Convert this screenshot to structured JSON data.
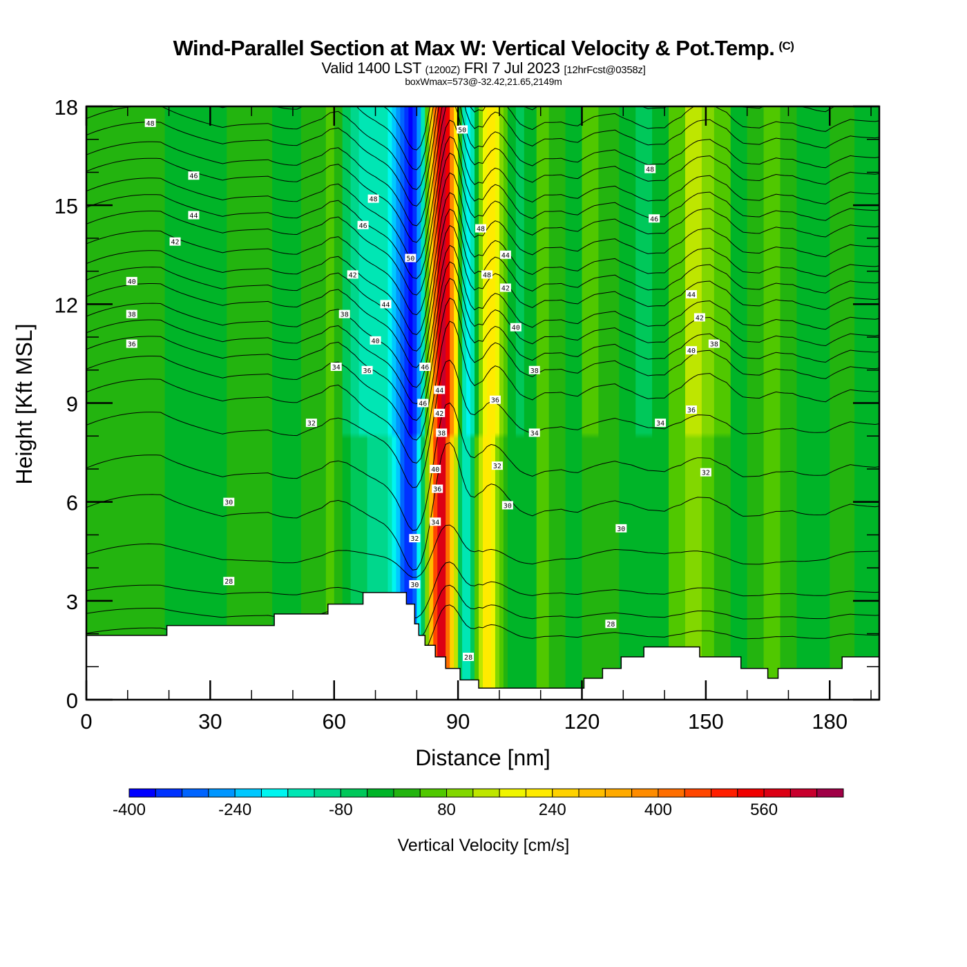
{
  "header": {
    "title": "Wind-Parallel Section at Max W: Vertical Velocity & Pot.Temp.",
    "copyright": "(C)",
    "valid_prefix": "Valid 1400 LST",
    "valid_utc": "(1200Z)",
    "valid_date": "FRI 7 Jul 2023",
    "forecast": "[12hrFcst@0358z]",
    "box_wmax": "boxWmax=573@-32.42,21.65,2149m"
  },
  "chart_data": {
    "type": "heatmap",
    "title": "Wind-Parallel Section at Max W: Vertical Velocity & Pot.Temp.",
    "xlabel": "Distance [nm]",
    "ylabel": "Height [Kft MSL]",
    "xlim": [
      0,
      192
    ],
    "ylim": [
      0,
      18
    ],
    "xticks": [
      0,
      30,
      60,
      90,
      120,
      150,
      180
    ],
    "xtick_labels": [
      "0",
      "30",
      "60",
      "90",
      "120",
      "150",
      "180"
    ],
    "yticks": [
      0,
      3,
      6,
      9,
      12,
      15,
      18
    ],
    "ytick_labels": [
      "0",
      "3",
      "6",
      "9",
      "12",
      "15",
      "18"
    ],
    "grid": false,
    "colorbar": {
      "title": "Vertical Velocity [cm/s]",
      "levels_start": -400,
      "level_step": 40,
      "tick_values": [
        -400,
        -240,
        -80,
        80,
        240,
        400,
        560
      ],
      "tick_labels": [
        "-400",
        "-240",
        "-80",
        "80",
        "240",
        "400",
        "560"
      ],
      "colors": [
        "#0000ff",
        "#0032ff",
        "#0064ff",
        "#0096ff",
        "#00c8ff",
        "#00f5f0",
        "#00e6b4",
        "#00d78c",
        "#00c85a",
        "#00b428",
        "#23b40f",
        "#50c800",
        "#82d700",
        "#bee600",
        "#f0f500",
        "#ffeb00",
        "#ffd200",
        "#ffbe00",
        "#ffaa00",
        "#ff8c00",
        "#ff6e00",
        "#ff4600",
        "#ff1e00",
        "#f00000",
        "#dc0014",
        "#c8002d",
        "#a00046"
      ]
    },
    "vertical_velocity_columns": {
      "description": "Vertical velocity (cm/s) by distance band, approximating the filled field above terrain",
      "x_edges": [
        0,
        19,
        34,
        45,
        52,
        58,
        60,
        62,
        64,
        66,
        68,
        71,
        73,
        74,
        75,
        76,
        77,
        78,
        79,
        80,
        81,
        82,
        83,
        84,
        85,
        86,
        87,
        88,
        89,
        90,
        91,
        92,
        93,
        94,
        95,
        96,
        97,
        98,
        99,
        100,
        101,
        102,
        104,
        106,
        109,
        112,
        116,
        120,
        124,
        129,
        133,
        137,
        141,
        145,
        149,
        152,
        156,
        160,
        164,
        168,
        172,
        176,
        180,
        186,
        192
      ],
      "upper_values": [
        20,
        -20,
        20,
        -20,
        20,
        60,
        20,
        -60,
        -100,
        -140,
        -140,
        -160,
        -180,
        -220,
        -260,
        -300,
        -340,
        -380,
        -340,
        -260,
        -140,
        60,
        260,
        420,
        540,
        620,
        540,
        380,
        200,
        0,
        -160,
        -200,
        -140,
        -40,
        100,
        180,
        220,
        220,
        180,
        100,
        40,
        -20,
        -60,
        -20,
        60,
        20,
        -20,
        40,
        20,
        -40,
        -60,
        -20,
        60,
        120,
        100,
        40,
        -20,
        20,
        60,
        20,
        -20,
        -40,
        20,
        -20
      ],
      "lower_values": [
        20,
        -20,
        20,
        -20,
        20,
        60,
        20,
        -20,
        -60,
        -80,
        -100,
        -120,
        -160,
        -200,
        -240,
        -300,
        -340,
        -360,
        -300,
        -200,
        -60,
        100,
        300,
        460,
        560,
        560,
        420,
        260,
        120,
        -60,
        -160,
        -140,
        -60,
        40,
        140,
        200,
        200,
        160,
        100,
        60,
        20,
        -20,
        -40,
        -20,
        40,
        20,
        -20,
        20,
        20,
        -20,
        -40,
        -20,
        40,
        80,
        60,
        20,
        -20,
        20,
        40,
        20,
        -20,
        -20,
        20,
        -20
      ]
    },
    "terrain": {
      "description": "Terrain profile (blank region) as steps: [start_nm, end_nm, height_kft]",
      "steps": [
        [
          0,
          19.5,
          1.95
        ],
        [
          19.5,
          45.5,
          2.25
        ],
        [
          45.5,
          58.5,
          2.6
        ],
        [
          58.5,
          67,
          2.9
        ],
        [
          67,
          77.5,
          3.25
        ],
        [
          77.5,
          79.5,
          2.9
        ],
        [
          79.5,
          80.5,
          2.3
        ],
        [
          80.5,
          82,
          1.95
        ],
        [
          82,
          84.5,
          1.65
        ],
        [
          84.5,
          87,
          1.3
        ],
        [
          87,
          90.5,
          0.95
        ],
        [
          90.5,
          95,
          0.6
        ],
        [
          95,
          120.5,
          0.35
        ],
        [
          120.5,
          125,
          0.65
        ],
        [
          125,
          129.5,
          0.95
        ],
        [
          129.5,
          135,
          1.3
        ],
        [
          135,
          148.5,
          1.6
        ],
        [
          148.5,
          158.5,
          1.3
        ],
        [
          158.5,
          165,
          0.95
        ],
        [
          165,
          167.5,
          0.65
        ],
        [
          167.5,
          183,
          0.95
        ],
        [
          183,
          192,
          1.3
        ]
      ]
    },
    "potential_temperature": {
      "description": "Isentropes (deg C potential temperature), contour interval 1; base height (kft) at left edge",
      "contour_interval": 1,
      "levels_min": 26,
      "levels_max": 50,
      "level_heights_left": {
        "26": 2.0,
        "27": 2.6,
        "28": 3.3,
        "29": 4.4,
        "30": 5.8,
        "31": 7.0,
        "32": 8.3,
        "33": 9.3,
        "34": 10.0,
        "35": 10.6,
        "36": 11.1,
        "37": 11.6,
        "38": 12.2,
        "39": 12.7,
        "40": 13.2,
        "41": 13.8,
        "42": 14.4,
        "43": 14.9,
        "44": 15.4,
        "45": 16.0,
        "46": 16.5,
        "47": 17.1,
        "48": 17.6,
        "49": 18.2,
        "50": 18.8
      }
    },
    "contour_labels": [
      {
        "text": "48",
        "x": 15.5,
        "y": 17.5
      },
      {
        "text": "46",
        "x": 26,
        "y": 15.9
      },
      {
        "text": "44",
        "x": 26,
        "y": 14.7
      },
      {
        "text": "42",
        "x": 21.5,
        "y": 13.9
      },
      {
        "text": "40",
        "x": 11,
        "y": 12.7
      },
      {
        "text": "38",
        "x": 11,
        "y": 11.7
      },
      {
        "text": "36",
        "x": 11,
        "y": 10.8
      },
      {
        "text": "34",
        "x": 60.5,
        "y": 10.1
      },
      {
        "text": "32",
        "x": 54.5,
        "y": 8.4
      },
      {
        "text": "30",
        "x": 34.5,
        "y": 6.0
      },
      {
        "text": "28",
        "x": 34.5,
        "y": 3.6
      },
      {
        "text": "48",
        "x": 69.5,
        "y": 15.2
      },
      {
        "text": "46",
        "x": 67,
        "y": 14.4
      },
      {
        "text": "42",
        "x": 64.5,
        "y": 12.9
      },
      {
        "text": "38",
        "x": 62.5,
        "y": 11.7
      },
      {
        "text": "44",
        "x": 72.5,
        "y": 12.0
      },
      {
        "text": "40",
        "x": 70,
        "y": 10.9
      },
      {
        "text": "36",
        "x": 68,
        "y": 10.0
      },
      {
        "text": "50",
        "x": 78.5,
        "y": 13.4
      },
      {
        "text": "46",
        "x": 82,
        "y": 10.1
      },
      {
        "text": "46",
        "x": 81.5,
        "y": 9.0
      },
      {
        "text": "44",
        "x": 85.5,
        "y": 9.4
      },
      {
        "text": "42",
        "x": 85.5,
        "y": 8.7
      },
      {
        "text": "38",
        "x": 86,
        "y": 8.1
      },
      {
        "text": "40",
        "x": 84.5,
        "y": 7.0
      },
      {
        "text": "36",
        "x": 85,
        "y": 6.4
      },
      {
        "text": "34",
        "x": 84.5,
        "y": 5.4
      },
      {
        "text": "32",
        "x": 79.5,
        "y": 4.9
      },
      {
        "text": "30",
        "x": 79.5,
        "y": 3.5
      },
      {
        "text": "28",
        "x": 92.5,
        "y": 1.3
      },
      {
        "text": "50",
        "x": 91,
        "y": 17.3
      },
      {
        "text": "48",
        "x": 95.5,
        "y": 14.3
      },
      {
        "text": "48",
        "x": 97,
        "y": 12.9
      },
      {
        "text": "44",
        "x": 101.5,
        "y": 13.5
      },
      {
        "text": "42",
        "x": 101.5,
        "y": 12.5
      },
      {
        "text": "40",
        "x": 104,
        "y": 11.3
      },
      {
        "text": "38",
        "x": 108.5,
        "y": 10.0
      },
      {
        "text": "36",
        "x": 99,
        "y": 9.1
      },
      {
        "text": "34",
        "x": 108.5,
        "y": 8.1
      },
      {
        "text": "32",
        "x": 99.5,
        "y": 7.1
      },
      {
        "text": "30",
        "x": 102,
        "y": 5.9
      },
      {
        "text": "30",
        "x": 129.5,
        "y": 5.2
      },
      {
        "text": "28",
        "x": 127,
        "y": 2.3
      },
      {
        "text": "48",
        "x": 136.5,
        "y": 16.1
      },
      {
        "text": "46",
        "x": 137.5,
        "y": 14.6
      },
      {
        "text": "44",
        "x": 146.5,
        "y": 12.3
      },
      {
        "text": "42",
        "x": 148.5,
        "y": 11.6
      },
      {
        "text": "40",
        "x": 146.5,
        "y": 10.6
      },
      {
        "text": "38",
        "x": 152,
        "y": 10.8
      },
      {
        "text": "36",
        "x": 146.5,
        "y": 8.8
      },
      {
        "text": "34",
        "x": 139,
        "y": 8.4
      },
      {
        "text": "32",
        "x": 150,
        "y": 6.9
      }
    ]
  }
}
